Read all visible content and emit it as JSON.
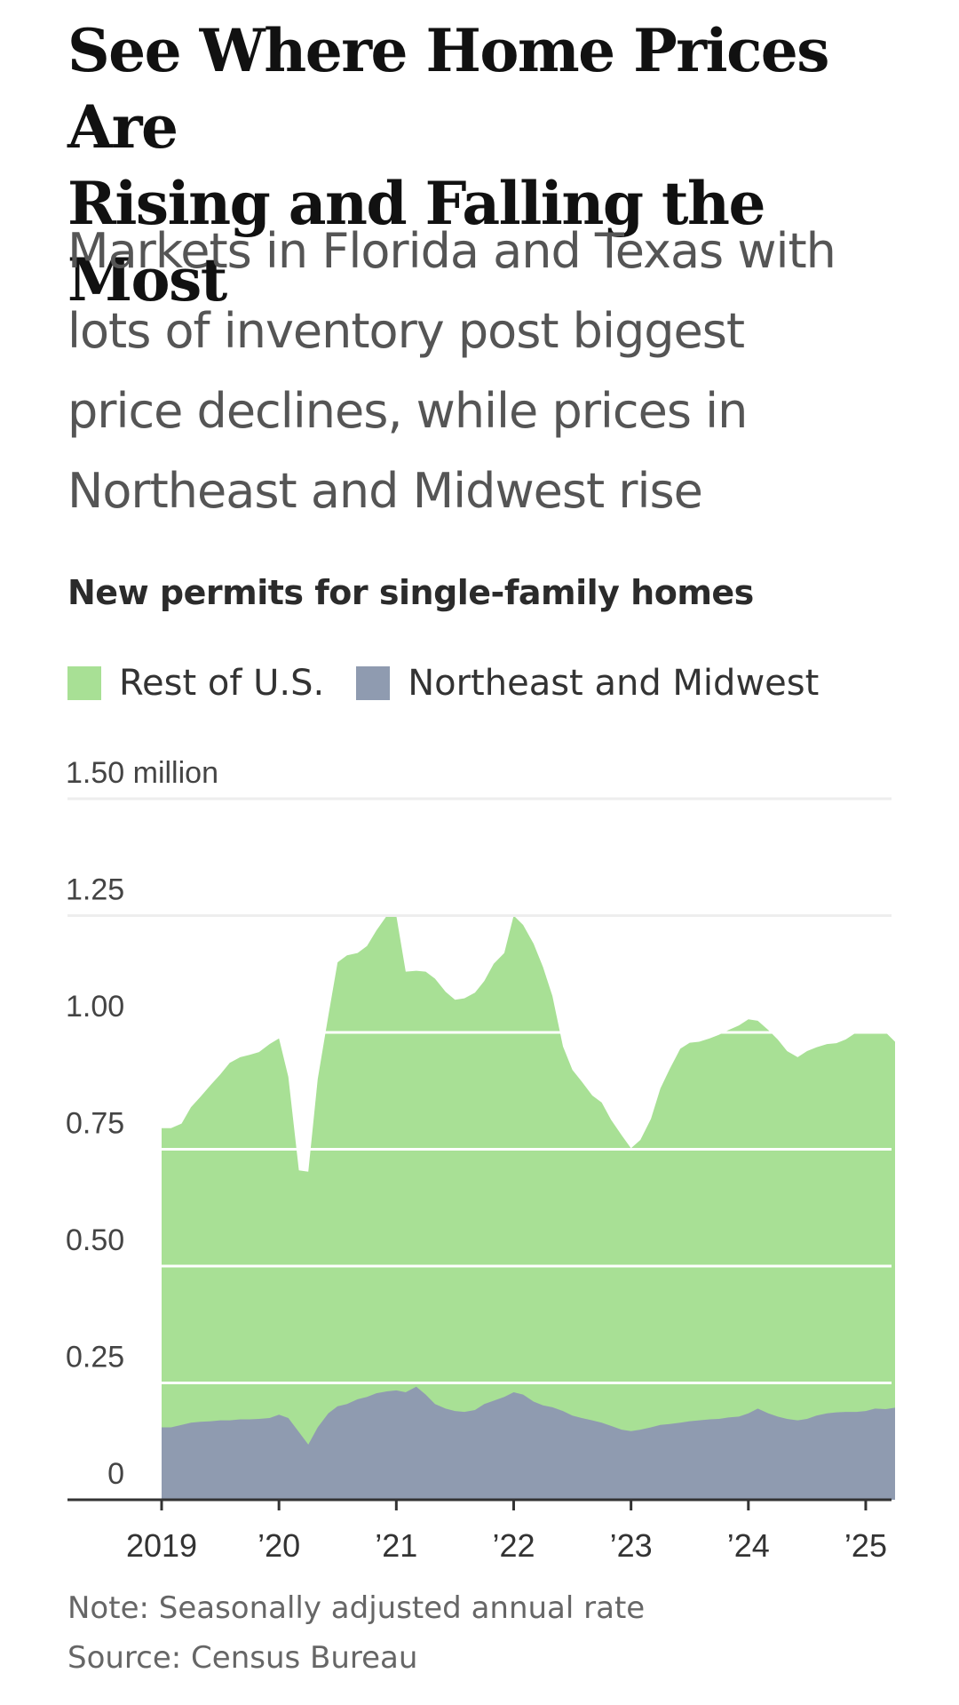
{
  "headline": {
    "line1": "See Where Home Prices Are",
    "line2": "Rising and Falling the Most"
  },
  "dek": {
    "line1": "Markets in Florida and Texas with",
    "line2": "lots of inventory post biggest",
    "line3": "price declines, while prices in",
    "line4": "Northeast and Midwest rise"
  },
  "note": "Note: Seasonally adjusted annual rate",
  "source": "Source: Census Bureau",
  "colors": {
    "rest_of_us": "#a8e095",
    "northeast_midwest": "#8f9bb0",
    "gridline": "#ffffff",
    "axis": "#333333"
  },
  "chart_data": {
    "type": "area",
    "stacked": true,
    "title": "New permits for single-family homes",
    "y_unit_label": "1.50 million",
    "ylim": [
      0,
      1.5
    ],
    "yticks": [
      0,
      0.25,
      0.5,
      0.75,
      1.0,
      1.25,
      1.5
    ],
    "ytick_labels": [
      "0",
      "0.25",
      "0.50",
      "0.75",
      "1.00",
      "1.25",
      "1.50 million"
    ],
    "xlim": [
      2019.0,
      2025.25
    ],
    "xticks": [
      2019,
      2020,
      2021,
      2022,
      2023,
      2024,
      2025
    ],
    "xtick_labels": [
      "2019",
      "’20",
      "’21",
      "’22",
      "’23",
      "’24",
      "’25"
    ],
    "legend": "top-left",
    "x": [
      2019.0,
      2019.08,
      2019.17,
      2019.25,
      2019.33,
      2019.42,
      2019.5,
      2019.58,
      2019.67,
      2019.75,
      2019.83,
      2019.92,
      2020.0,
      2020.08,
      2020.17,
      2020.25,
      2020.33,
      2020.42,
      2020.5,
      2020.58,
      2020.67,
      2020.75,
      2020.83,
      2020.92,
      2021.0,
      2021.08,
      2021.17,
      2021.25,
      2021.33,
      2021.42,
      2021.5,
      2021.58,
      2021.67,
      2021.75,
      2021.83,
      2021.92,
      2022.0,
      2022.08,
      2022.17,
      2022.25,
      2022.33,
      2022.42,
      2022.5,
      2022.58,
      2022.67,
      2022.75,
      2022.83,
      2022.92,
      2023.0,
      2023.08,
      2023.17,
      2023.25,
      2023.33,
      2023.42,
      2023.5,
      2023.58,
      2023.67,
      2023.75,
      2023.83,
      2023.92,
      2024.0,
      2024.08,
      2024.17,
      2024.25,
      2024.33,
      2024.42,
      2024.5,
      2024.58,
      2024.67,
      2024.75,
      2024.83,
      2024.92,
      2025.0,
      2025.08,
      2025.17,
      2025.25
    ],
    "series": [
      {
        "name": "Northeast and Midwest",
        "color": "#8f9bb0",
        "values": [
          0.155,
          0.155,
          0.16,
          0.165,
          0.167,
          0.168,
          0.17,
          0.17,
          0.172,
          0.172,
          0.173,
          0.175,
          0.182,
          0.175,
          0.145,
          0.118,
          0.155,
          0.185,
          0.2,
          0.205,
          0.215,
          0.22,
          0.228,
          0.232,
          0.234,
          0.23,
          0.242,
          0.225,
          0.205,
          0.195,
          0.19,
          0.188,
          0.192,
          0.205,
          0.212,
          0.22,
          0.23,
          0.225,
          0.21,
          0.202,
          0.198,
          0.19,
          0.18,
          0.175,
          0.17,
          0.165,
          0.158,
          0.15,
          0.147,
          0.15,
          0.155,
          0.16,
          0.162,
          0.165,
          0.168,
          0.17,
          0.172,
          0.173,
          0.176,
          0.178,
          0.185,
          0.195,
          0.185,
          0.178,
          0.173,
          0.17,
          0.173,
          0.18,
          0.185,
          0.187,
          0.188,
          0.188,
          0.19,
          0.195,
          0.194,
          0.197
        ]
      },
      {
        "name": "Rest of U.S.",
        "color": "#a8e095",
        "values": [
          0.64,
          0.64,
          0.645,
          0.675,
          0.695,
          0.72,
          0.74,
          0.765,
          0.775,
          0.78,
          0.785,
          0.8,
          0.805,
          0.73,
          0.56,
          0.584,
          0.745,
          0.85,
          0.95,
          0.96,
          0.955,
          0.965,
          0.99,
          1.018,
          1.016,
          0.9,
          0.89,
          0.905,
          0.91,
          0.892,
          0.88,
          0.885,
          0.893,
          0.905,
          0.935,
          0.95,
          1.02,
          1.005,
          0.98,
          0.938,
          0.88,
          0.78,
          0.74,
          0.72,
          0.695,
          0.685,
          0.655,
          0.63,
          0.605,
          0.62,
          0.66,
          0.72,
          0.76,
          0.8,
          0.81,
          0.81,
          0.815,
          0.822,
          0.829,
          0.837,
          0.843,
          0.83,
          0.82,
          0.807,
          0.787,
          0.777,
          0.787,
          0.788,
          0.79,
          0.79,
          0.797,
          0.812,
          0.81,
          0.806,
          0.806,
          0.783
        ]
      }
    ]
  }
}
